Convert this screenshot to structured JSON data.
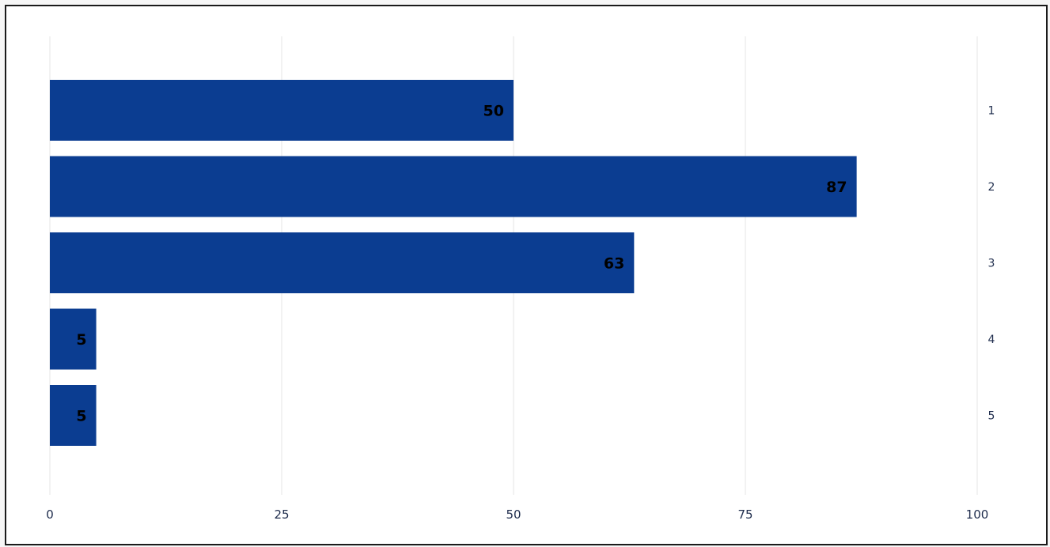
{
  "chart_data": {
    "type": "bar",
    "orientation": "horizontal",
    "categories": [
      "1",
      "2",
      "3",
      "4",
      "5"
    ],
    "values": [
      50,
      87,
      63,
      5,
      5
    ],
    "data_labels": [
      "50",
      "87",
      "63",
      "5",
      "5"
    ],
    "xlim": [
      0,
      100
    ],
    "x_ticks": [
      0,
      25,
      50,
      75,
      100
    ],
    "x_tick_labels": [
      "0",
      "25",
      "50",
      "75",
      "100"
    ],
    "category_axis_position": "right",
    "grid": "vertical",
    "bar_color": "#0b3d91"
  }
}
